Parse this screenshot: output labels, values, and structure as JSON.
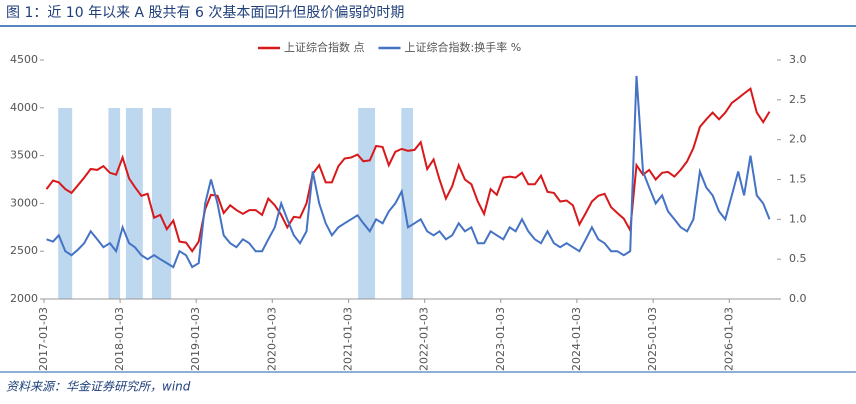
{
  "chart_data": {
    "type": "line",
    "title": "图 1：近 10 年以来 A 股共有 6 次基本面回升但股价偏弱的时期",
    "source": "资料来源：华金证券研究所，wind",
    "x": [
      "2017-01-15",
      "2017-02-15",
      "2017-03-15",
      "2017-04-15",
      "2017-05-15",
      "2017-06-15",
      "2017-07-15",
      "2017-08-15",
      "2017-09-15",
      "2017-10-15",
      "2017-11-15",
      "2017-12-15",
      "2018-01-15",
      "2018-02-15",
      "2018-03-15",
      "2018-04-15",
      "2018-05-15",
      "2018-06-15",
      "2018-07-15",
      "2018-08-15",
      "2018-09-15",
      "2018-10-15",
      "2018-11-15",
      "2018-12-15",
      "2019-01-15",
      "2019-02-15",
      "2019-03-15",
      "2019-04-15",
      "2019-05-15",
      "2019-06-15",
      "2019-07-15",
      "2019-08-15",
      "2019-09-15",
      "2019-10-15",
      "2019-11-15",
      "2019-12-15",
      "2020-01-15",
      "2020-02-15",
      "2020-03-15",
      "2020-04-15",
      "2020-05-15",
      "2020-06-15",
      "2020-07-15",
      "2020-08-15",
      "2020-09-15",
      "2020-10-15",
      "2020-11-15",
      "2020-12-15",
      "2021-01-15",
      "2021-02-15",
      "2021-03-15",
      "2021-04-15",
      "2021-05-15",
      "2021-06-15",
      "2021-07-15",
      "2021-08-15",
      "2021-09-15",
      "2021-10-15",
      "2021-11-15",
      "2021-12-15",
      "2022-01-15",
      "2022-02-15",
      "2022-03-15",
      "2022-04-15",
      "2022-05-15",
      "2022-06-15",
      "2022-07-15",
      "2022-08-15",
      "2022-09-15",
      "2022-10-15",
      "2022-11-15",
      "2022-12-15",
      "2023-01-15",
      "2023-02-15",
      "2023-03-15",
      "2023-04-15",
      "2023-05-15",
      "2023-06-15",
      "2023-07-15",
      "2023-08-15",
      "2023-09-15",
      "2023-10-15",
      "2023-11-15",
      "2023-12-15",
      "2024-01-15",
      "2024-02-15",
      "2024-03-15",
      "2024-04-15",
      "2024-05-15",
      "2024-06-15",
      "2024-07-15",
      "2024-08-15",
      "2024-09-15",
      "2024-10-15",
      "2024-11-15",
      "2024-12-15",
      "2025-01-15",
      "2025-02-15",
      "2025-03-15",
      "2025-04-15",
      "2025-05-15",
      "2025-06-15",
      "2025-07-15",
      "2025-08-15",
      "2025-09-15",
      "2025-10-15",
      "2025-11-15",
      "2025-12-15",
      "2026-01-15",
      "2026-02-15",
      "2026-03-15",
      "2026-04-15",
      "2026-05-15",
      "2026-06-15",
      "2026-07-15"
    ],
    "series": [
      {
        "name": "上证综合指数 点",
        "color": "#d7191c",
        "values": [
          3150,
          3240,
          3220,
          3150,
          3110,
          3190,
          3270,
          3360,
          3350,
          3390,
          3320,
          3300,
          3480,
          3260,
          3170,
          3080,
          3100,
          2850,
          2880,
          2730,
          2820,
          2600,
          2590,
          2500,
          2600,
          2940,
          3090,
          3080,
          2900,
          2980,
          2930,
          2890,
          2930,
          2930,
          2880,
          3050,
          2980,
          2880,
          2750,
          2860,
          2850,
          3000,
          3310,
          3400,
          3220,
          3220,
          3390,
          3470,
          3480,
          3510,
          3440,
          3450,
          3600,
          3590,
          3400,
          3540,
          3570,
          3550,
          3560,
          3640,
          3360,
          3460,
          3250,
          3050,
          3180,
          3400,
          3250,
          3200,
          3020,
          2890,
          3150,
          3090,
          3270,
          3280,
          3270,
          3320,
          3200,
          3200,
          3290,
          3120,
          3110,
          3020,
          3030,
          2980,
          2780,
          2900,
          3020,
          3080,
          3100,
          2960,
          2900,
          2840,
          2720,
          3400,
          3300,
          3350,
          3250,
          3320,
          3330,
          3280,
          3350,
          3440,
          3580,
          3800,
          3880,
          3950,
          3880,
          3950,
          4050,
          4100,
          4150,
          4200,
          3950,
          3850,
          3960
        ]
      },
      {
        "name": "上证综合指数:换手率 %",
        "color": "#4472c4",
        "axis": "y2",
        "values": [
          0.75,
          0.72,
          0.8,
          0.6,
          0.55,
          0.62,
          0.7,
          0.85,
          0.75,
          0.65,
          0.7,
          0.6,
          0.9,
          0.7,
          0.65,
          0.55,
          0.5,
          0.55,
          0.5,
          0.45,
          0.4,
          0.6,
          0.55,
          0.4,
          0.45,
          1.2,
          1.5,
          1.2,
          0.8,
          0.7,
          0.65,
          0.75,
          0.7,
          0.6,
          0.6,
          0.75,
          0.9,
          1.2,
          1.0,
          0.8,
          0.7,
          0.85,
          1.6,
          1.2,
          0.95,
          0.8,
          0.9,
          0.95,
          1.0,
          1.05,
          0.95,
          0.85,
          1.0,
          0.95,
          1.1,
          1.2,
          1.35,
          0.9,
          0.95,
          1.0,
          0.85,
          0.8,
          0.85,
          0.75,
          0.8,
          0.95,
          0.85,
          0.9,
          0.7,
          0.7,
          0.85,
          0.8,
          0.75,
          0.9,
          0.85,
          1.0,
          0.85,
          0.75,
          0.7,
          0.85,
          0.7,
          0.65,
          0.7,
          0.65,
          0.6,
          0.75,
          0.9,
          0.75,
          0.7,
          0.6,
          0.6,
          0.55,
          0.6,
          2.8,
          1.6,
          1.4,
          1.2,
          1.3,
          1.1,
          1.0,
          0.9,
          0.85,
          1.0,
          1.6,
          1.4,
          1.3,
          1.1,
          1.0,
          1.3,
          1.6,
          1.3,
          1.8,
          1.3,
          1.2,
          1.0
        ]
      }
    ],
    "highlight_periods": [
      {
        "start": "2017-03-12",
        "end": "2017-05-18"
      },
      {
        "start": "2017-11-08",
        "end": "2018-01-03"
      },
      {
        "start": "2018-01-31",
        "end": "2018-04-22"
      },
      {
        "start": "2018-06-05",
        "end": "2018-09-05"
      },
      {
        "start": "2021-02-18",
        "end": "2021-05-10"
      },
      {
        "start": "2021-09-13",
        "end": "2021-11-08"
      }
    ],
    "highlight_color": "#bdd7ee",
    "xlim": [
      "2017-01-03",
      "2026-08-20"
    ],
    "xticks": [
      "2017-01-03",
      "2018-01-03",
      "2019-01-03",
      "2020-01-03",
      "2021-01-03",
      "2022-01-03",
      "2023-01-03",
      "2024-01-03",
      "2025-01-03",
      "2026-01-03"
    ],
    "ylim": [
      2000,
      4500
    ],
    "yticks": [
      2000,
      2500,
      3000,
      3500,
      4000,
      4500
    ],
    "y2lim": [
      0,
      3
    ],
    "y2ticks": [
      {
        "value": 0,
        "label": "0.0"
      },
      0.5,
      {
        "value": 1,
        "label": "1.0"
      },
      1.5,
      {
        "value": 2,
        "label": "2.0"
      },
      2.5,
      {
        "value": 3,
        "label": "3.0"
      }
    ],
    "legend": "top"
  }
}
